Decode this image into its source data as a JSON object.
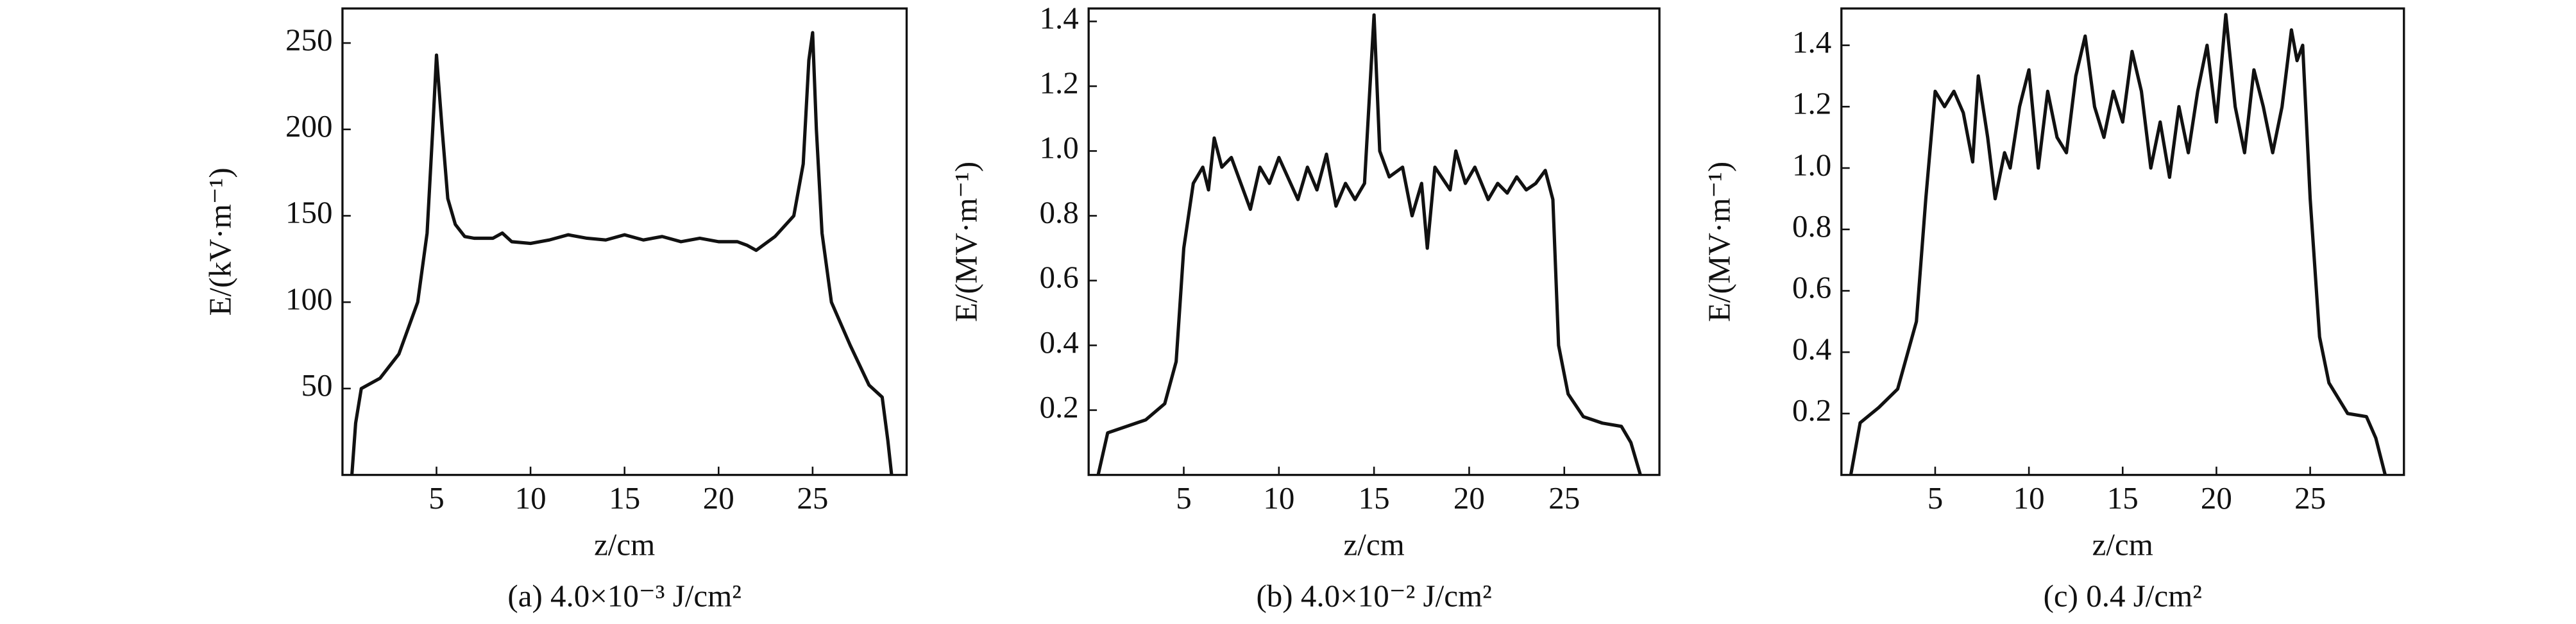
{
  "chart_data": [
    {
      "type": "line",
      "xlabel": "z/cm",
      "ylabel": "E/(kV·m⁻¹)",
      "caption": "(a) 4.0×10⁻³ J/cm²",
      "xlim": [
        0,
        30
      ],
      "xticks": [
        5,
        10,
        15,
        20,
        25
      ],
      "ylim": [
        0,
        270
      ],
      "yticks": [
        50,
        100,
        150,
        200,
        250
      ],
      "color": "#111111",
      "x": [
        0.5,
        0.7,
        1,
        2,
        3,
        4,
        4.5,
        4.8,
        5,
        5.3,
        5.6,
        6,
        6.5,
        7,
        8,
        8.5,
        9,
        10,
        11,
        12,
        13,
        14,
        15,
        16,
        17,
        18,
        19,
        20,
        21,
        21.5,
        22,
        22.5,
        23,
        24,
        24.5,
        24.8,
        25,
        25.2,
        25.5,
        26,
        27,
        28,
        28.7,
        29,
        29.2
      ],
      "values": [
        0,
        30,
        50,
        56,
        70,
        100,
        140,
        200,
        243,
        200,
        160,
        145,
        138,
        137,
        137,
        140,
        135,
        134,
        136,
        139,
        137,
        136,
        139,
        136,
        138,
        135,
        137,
        135,
        135,
        133,
        130,
        134,
        138,
        150,
        180,
        240,
        256,
        200,
        140,
        100,
        75,
        52,
        45,
        20,
        0
      ]
    },
    {
      "type": "line",
      "xlabel": "z/cm",
      "ylabel": "E/(MV·m⁻¹)",
      "caption": "(b) 4.0×10⁻² J/cm²",
      "xlim": [
        0,
        30
      ],
      "xticks": [
        5,
        10,
        15,
        20,
        25
      ],
      "ylim": [
        0,
        1.44
      ],
      "yticks": [
        0.2,
        0.4,
        0.6,
        0.8,
        {
          "value": 1,
          "label": "1.0"
        },
        1.2,
        1.4
      ],
      "color": "#111111",
      "x": [
        0.5,
        1,
        2,
        3,
        4,
        4.6,
        5,
        5.5,
        6,
        6.3,
        6.6,
        7,
        7.5,
        8,
        8.5,
        9,
        9.5,
        10,
        11,
        11.5,
        12,
        12.5,
        13,
        13.5,
        14,
        14.5,
        15,
        15.3,
        15.8,
        16.5,
        17,
        17.5,
        17.8,
        18.2,
        19,
        19.3,
        19.8,
        20.3,
        21,
        21.5,
        22,
        22.5,
        23,
        23.5,
        24,
        24.4,
        24.7,
        25.2,
        26,
        27,
        28,
        28.5,
        29
      ],
      "values": [
        0,
        0.13,
        0.15,
        0.17,
        0.22,
        0.35,
        0.7,
        0.9,
        0.95,
        0.88,
        1.04,
        0.95,
        0.98,
        0.9,
        0.82,
        0.95,
        0.9,
        0.98,
        0.85,
        0.95,
        0.88,
        0.99,
        0.83,
        0.9,
        0.85,
        0.9,
        1.42,
        1.0,
        0.92,
        0.95,
        0.8,
        0.9,
        0.7,
        0.95,
        0.88,
        1.0,
        0.9,
        0.95,
        0.85,
        0.9,
        0.87,
        0.92,
        0.88,
        0.9,
        0.94,
        0.85,
        0.4,
        0.25,
        0.18,
        0.16,
        0.15,
        0.1,
        0
      ]
    },
    {
      "type": "line",
      "xlabel": "z/cm",
      "ylabel": "E/(MV·m⁻¹)",
      "caption": "(c) 0.4 J/cm²",
      "xlim": [
        0,
        30
      ],
      "xticks": [
        5,
        10,
        15,
        20,
        25
      ],
      "ylim": [
        0,
        1.52
      ],
      "yticks": [
        0.2,
        0.4,
        0.6,
        0.8,
        {
          "value": 1,
          "label": "1.0"
        },
        1.2,
        1.4
      ],
      "color": "#111111",
      "x": [
        0.5,
        1,
        2,
        3,
        4,
        4.5,
        5,
        5.5,
        6,
        6.5,
        7,
        7.3,
        7.8,
        8.2,
        8.7,
        9,
        9.5,
        10,
        10.5,
        11,
        11.5,
        12,
        12.5,
        13,
        13.5,
        14,
        14.5,
        15,
        15.5,
        16,
        16.5,
        17,
        17.5,
        18,
        18.5,
        19,
        19.5,
        20,
        20.5,
        21,
        21.5,
        22,
        22.5,
        23,
        23.5,
        24,
        24.3,
        24.6,
        25,
        25.5,
        26,
        27,
        28,
        28.5,
        29
      ],
      "values": [
        0,
        0.17,
        0.22,
        0.28,
        0.5,
        0.9,
        1.25,
        1.2,
        1.25,
        1.18,
        1.02,
        1.3,
        1.1,
        0.9,
        1.05,
        1.0,
        1.2,
        1.32,
        1.0,
        1.25,
        1.1,
        1.05,
        1.3,
        1.43,
        1.2,
        1.1,
        1.25,
        1.15,
        1.38,
        1.25,
        1.0,
        1.15,
        0.97,
        1.2,
        1.05,
        1.25,
        1.4,
        1.15,
        1.5,
        1.2,
        1.05,
        1.32,
        1.2,
        1.05,
        1.2,
        1.45,
        1.35,
        1.4,
        0.9,
        0.45,
        0.3,
        0.2,
        0.19,
        0.12,
        0
      ]
    }
  ]
}
